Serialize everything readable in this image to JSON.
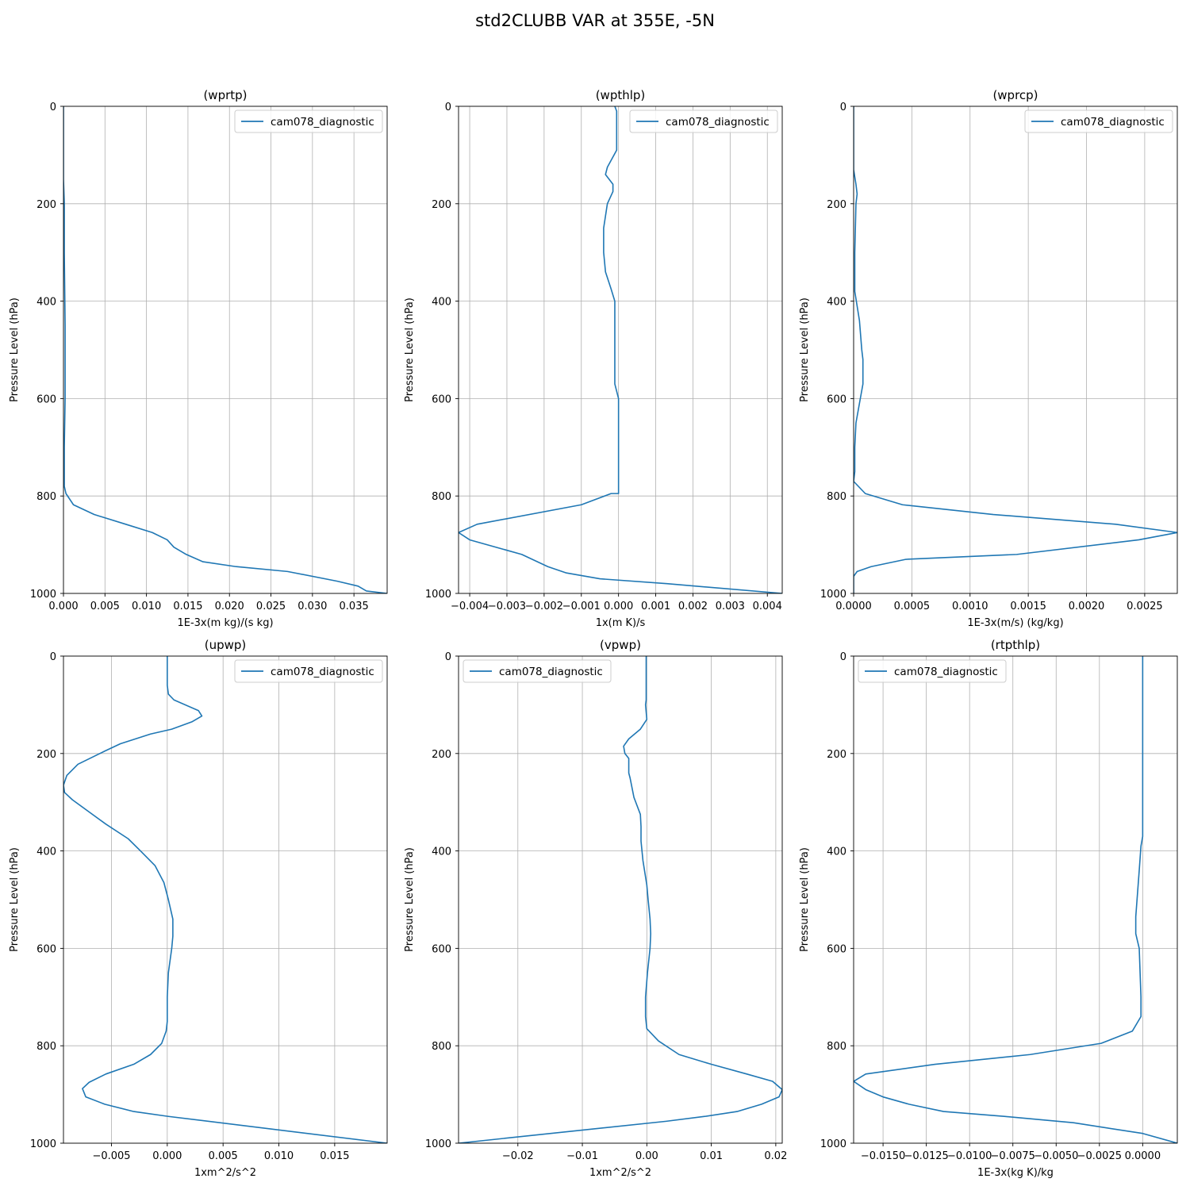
{
  "figure": {
    "title": "std2CLUBB VAR at 355E, -5N"
  },
  "chart_data": [
    {
      "type": "line",
      "title": "(wprtp)",
      "xlabel": "1E-3x(m kg)/(s kg)",
      "ylabel": "Pressure Level (hPa)",
      "xlim": [
        0,
        0.039
      ],
      "ylim": [
        1000,
        0
      ],
      "xticks": [
        0.0,
        0.005,
        0.01,
        0.015,
        0.02,
        0.025,
        0.03,
        0.035
      ],
      "xtick_labels": [
        "0.000",
        "0.005",
        "0.010",
        "0.015",
        "0.020",
        "0.025",
        "0.030",
        "0.035"
      ],
      "yticks": [
        0,
        200,
        400,
        600,
        800,
        1000
      ],
      "ytick_labels": [
        "0",
        "200",
        "400",
        "600",
        "800",
        "1000"
      ],
      "grid": true,
      "legend_position": "top-right",
      "series": [
        {
          "name": "cam078_diagnostic",
          "color": "#1f77b4",
          "x": [
            0,
            0,
            0.0001,
            0.0001,
            0.0002,
            0.0002,
            0.0001,
            0.0001,
            0.0001,
            0.0003,
            0.0012,
            0.0037,
            0.0075,
            0.0107,
            0.0125,
            0.0133,
            0.0148,
            0.0168,
            0.0208,
            0.027,
            0.033,
            0.0355,
            0.0365,
            0.039
          ],
          "y": [
            0,
            150,
            200,
            300,
            450,
            600,
            700,
            770,
            780,
            795,
            818,
            838,
            858,
            875,
            890,
            905,
            920,
            935,
            945,
            955,
            975,
            985,
            995,
            1000
          ]
        }
      ]
    },
    {
      "type": "line",
      "title": "(wpthlp)",
      "xlabel": "1x(m K)/s",
      "ylabel": "Pressure Level (hPa)",
      "xlim": [
        -0.0043,
        0.0044
      ],
      "ylim": [
        1000,
        0
      ],
      "xticks": [
        -0.004,
        -0.003,
        -0.002,
        -0.001,
        0,
        0.001,
        0.002,
        0.003,
        0.004
      ],
      "xtick_labels": [
        "−0.004",
        "−0.003",
        "−0.002",
        "−0.001",
        "0.000",
        "0.001",
        "0.002",
        "0.003",
        "0.004"
      ],
      "yticks": [
        0,
        200,
        400,
        600,
        800,
        1000
      ],
      "ytick_labels": [
        "0",
        "200",
        "400",
        "600",
        "800",
        "1000"
      ],
      "grid": true,
      "legend_position": "top-right",
      "series": [
        {
          "name": "cam078_diagnostic",
          "color": "#1f77b4",
          "x": [
            -0.0001,
            -5e-05,
            -5e-05,
            -0.0003,
            -0.00035,
            -0.00015,
            -0.00015,
            -0.0003,
            -0.0004,
            -0.0004,
            -0.00035,
            -0.0002,
            -0.0001,
            -0.0001,
            -0.0001,
            -0.0001,
            -0.0001,
            0,
            0,
            0,
            0,
            -0.0002,
            -0.001,
            -0.0038,
            -0.0043,
            -0.004,
            -0.0026,
            -0.0019,
            -0.0014,
            -0.0005,
            0.0013,
            0.0044
          ],
          "y": [
            0,
            10,
            90,
            125,
            140,
            160,
            175,
            200,
            250,
            300,
            340,
            375,
            400,
            500,
            530,
            550,
            570,
            600,
            700,
            770,
            795,
            795,
            818,
            858,
            875,
            890,
            920,
            945,
            958,
            970,
            980,
            1000
          ]
        }
      ]
    },
    {
      "type": "line",
      "title": "(wprcp)",
      "xlabel": "1E-3x(m/s) (kg/kg)",
      "ylabel": "Pressure Level (hPa)",
      "xlim": [
        0,
        0.00278
      ],
      "ylim": [
        1000,
        0
      ],
      "xticks": [
        0,
        0.0005,
        0.001,
        0.0015,
        0.002,
        0.0025
      ],
      "xtick_labels": [
        "0.0000",
        "0.0005",
        "0.0010",
        "0.0015",
        "0.0020",
        "0.0025"
      ],
      "yticks": [
        0,
        200,
        400,
        600,
        800,
        1000
      ],
      "ytick_labels": [
        "0",
        "200",
        "400",
        "600",
        "800",
        "1000"
      ],
      "grid": true,
      "legend_position": "top-right",
      "series": [
        {
          "name": "cam078_diagnostic",
          "color": "#1f77b4",
          "x": [
            0,
            0,
            2e-05,
            3e-05,
            2e-05,
            1e-05,
            1e-05,
            5e-05,
            7e-05,
            8e-05,
            8e-05,
            5e-05,
            2e-05,
            1e-05,
            1e-05,
            0,
            0.0001,
            0.00042,
            0.0012,
            0.00225,
            0.00278,
            0.00245,
            0.0014,
            0.00045,
            0.00015,
            3e-05,
            0,
            0
          ],
          "y": [
            0,
            130,
            160,
            180,
            200,
            300,
            380,
            440,
            500,
            520,
            570,
            610,
            650,
            700,
            750,
            770,
            795,
            818,
            838,
            858,
            875,
            890,
            920,
            930,
            945,
            955,
            965,
            1000
          ]
        }
      ]
    },
    {
      "type": "line",
      "title": "(upwp)",
      "xlabel": "1xm^2/s^2",
      "ylabel": "Pressure Level (hPa)",
      "xlim": [
        -0.0093,
        0.0197
      ],
      "ylim": [
        1000,
        0
      ],
      "xticks": [
        -0.005,
        0.0,
        0.005,
        0.01,
        0.015
      ],
      "xtick_labels": [
        "−0.005",
        "0.000",
        "0.005",
        "0.010",
        "0.015"
      ],
      "yticks": [
        0,
        200,
        400,
        600,
        800,
        1000
      ],
      "ytick_labels": [
        "0",
        "200",
        "400",
        "600",
        "800",
        "1000"
      ],
      "grid": true,
      "legend_position": "top-right",
      "series": [
        {
          "name": "cam078_diagnostic",
          "color": "#1f77b4",
          "x": [
            0,
            0,
            0.0001,
            0.0006,
            0.0028,
            0.0031,
            0.0022,
            0.0004,
            -0.0015,
            -0.0042,
            -0.0056,
            -0.008,
            -0.009,
            -0.0093,
            -0.0092,
            -0.0085,
            -0.007,
            -0.0055,
            -0.0035,
            -0.0024,
            -0.0011,
            -0.0003,
            0.0001,
            0.0005,
            0.0005,
            0.0004,
            0.0001,
            0,
            0,
            -0.0001,
            -0.0005,
            -0.0015,
            -0.003,
            -0.0055,
            -0.007,
            -0.0076,
            -0.0073,
            -0.0056,
            -0.003,
            0.0001,
            0.0197
          ],
          "y": [
            0,
            60,
            78,
            90,
            112,
            123,
            135,
            150,
            160,
            180,
            195,
            222,
            245,
            265,
            280,
            295,
            320,
            345,
            375,
            400,
            430,
            465,
            500,
            540,
            575,
            600,
            650,
            700,
            750,
            770,
            795,
            818,
            838,
            858,
            875,
            888,
            905,
            920,
            935,
            945,
            1000
          ]
        }
      ]
    },
    {
      "type": "line",
      "title": "(vpwp)",
      "xlabel": "1xm^2/s^2",
      "ylabel": "Pressure Level (hPa)",
      "xlim": [
        -0.0292,
        0.021
      ],
      "ylim": [
        1000,
        0
      ],
      "xticks": [
        -0.02,
        -0.01,
        0.0,
        0.01,
        0.02
      ],
      "xtick_labels": [
        "−0.02",
        "−0.01",
        "0.00",
        "0.01",
        "0.02"
      ],
      "yticks": [
        0,
        200,
        400,
        600,
        800,
        1000
      ],
      "ytick_labels": [
        "0",
        "200",
        "400",
        "600",
        "800",
        "1000"
      ],
      "grid": true,
      "legend_position": "top-left",
      "series": [
        {
          "name": "cam078_diagnostic",
          "color": "#1f77b4",
          "x": [
            -0.0001,
            -0.0001,
            -0.0002,
            -0.0001,
            0,
            -0.001,
            -0.0028,
            -0.0036,
            -0.0034,
            -0.0028,
            -0.0028,
            -0.0026,
            -0.002,
            -0.001,
            -0.0009,
            -0.0009,
            -0.0006,
            0,
            0.0002,
            0.0005,
            0.0006,
            0.0005,
            0.0001,
            -0.0002,
            -0.0002,
            0,
            0.0018,
            0.005,
            0.01,
            0.0155,
            0.0195,
            0.021,
            0.0205,
            0.0178,
            0.014,
            0.009,
            0.003,
            -0.0292
          ],
          "y": [
            0,
            90,
            100,
            115,
            130,
            150,
            170,
            185,
            200,
            210,
            240,
            250,
            290,
            325,
            350,
            380,
            420,
            470,
            500,
            540,
            570,
            600,
            650,
            700,
            740,
            765,
            790,
            818,
            838,
            858,
            873,
            890,
            905,
            920,
            935,
            945,
            955,
            1000
          ]
        }
      ]
    },
    {
      "type": "line",
      "title": "(rtpthlp)",
      "xlabel": "1E-3x(kg K)/kg",
      "ylabel": "Pressure Level (hPa)",
      "xlim": [
        -0.0167,
        0.002
      ],
      "ylim": [
        1000,
        0
      ],
      "xticks": [
        -0.015,
        -0.0125,
        -0.01,
        -0.0075,
        -0.005,
        -0.0025,
        0.0
      ],
      "xtick_labels": [
        "−0.0150",
        "−0.0125",
        "−0.0100",
        "−0.0075",
        "−0.0050",
        "−0.0025",
        "0.0000"
      ],
      "yticks": [
        0,
        200,
        400,
        600,
        800,
        1000
      ],
      "ytick_labels": [
        "0",
        "200",
        "400",
        "600",
        "800",
        "1000"
      ],
      "grid": true,
      "legend_position": "top-left",
      "series": [
        {
          "name": "cam078_diagnostic",
          "color": "#1f77b4",
          "x": [
            0,
            0,
            0,
            -0.0001,
            -0.0002,
            -0.0004,
            -0.0004,
            -0.0002,
            -0.0001,
            -0.0001,
            -0.0006,
            -0.0024,
            -0.0065,
            -0.012,
            -0.016,
            -0.0167,
            -0.016,
            -0.015,
            -0.0135,
            -0.0115,
            -0.008,
            -0.004,
            0,
            0.002
          ],
          "y": [
            0,
            200,
            370,
            390,
            440,
            535,
            570,
            600,
            700,
            740,
            770,
            795,
            818,
            838,
            858,
            873,
            890,
            905,
            920,
            935,
            945,
            958,
            980,
            1000
          ]
        }
      ]
    }
  ]
}
